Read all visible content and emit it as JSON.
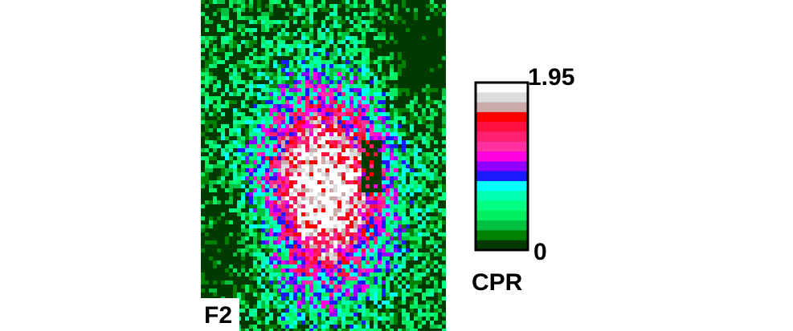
{
  "panel_label": "F2",
  "colorbar": {
    "label": "CPR",
    "max": 1.95,
    "min": 0,
    "colors": [
      "#ffffff",
      "#dcdcdc",
      "#ccaaaa",
      "#ff0000",
      "#ff1040",
      "#ff2070",
      "#ff30a0",
      "#ff00e0",
      "#9000ff",
      "#1a1aff",
      "#00ffff",
      "#00ffb0",
      "#00ff80",
      "#00ee60",
      "#00c040",
      "#008000",
      "#003a00"
    ]
  }
}
